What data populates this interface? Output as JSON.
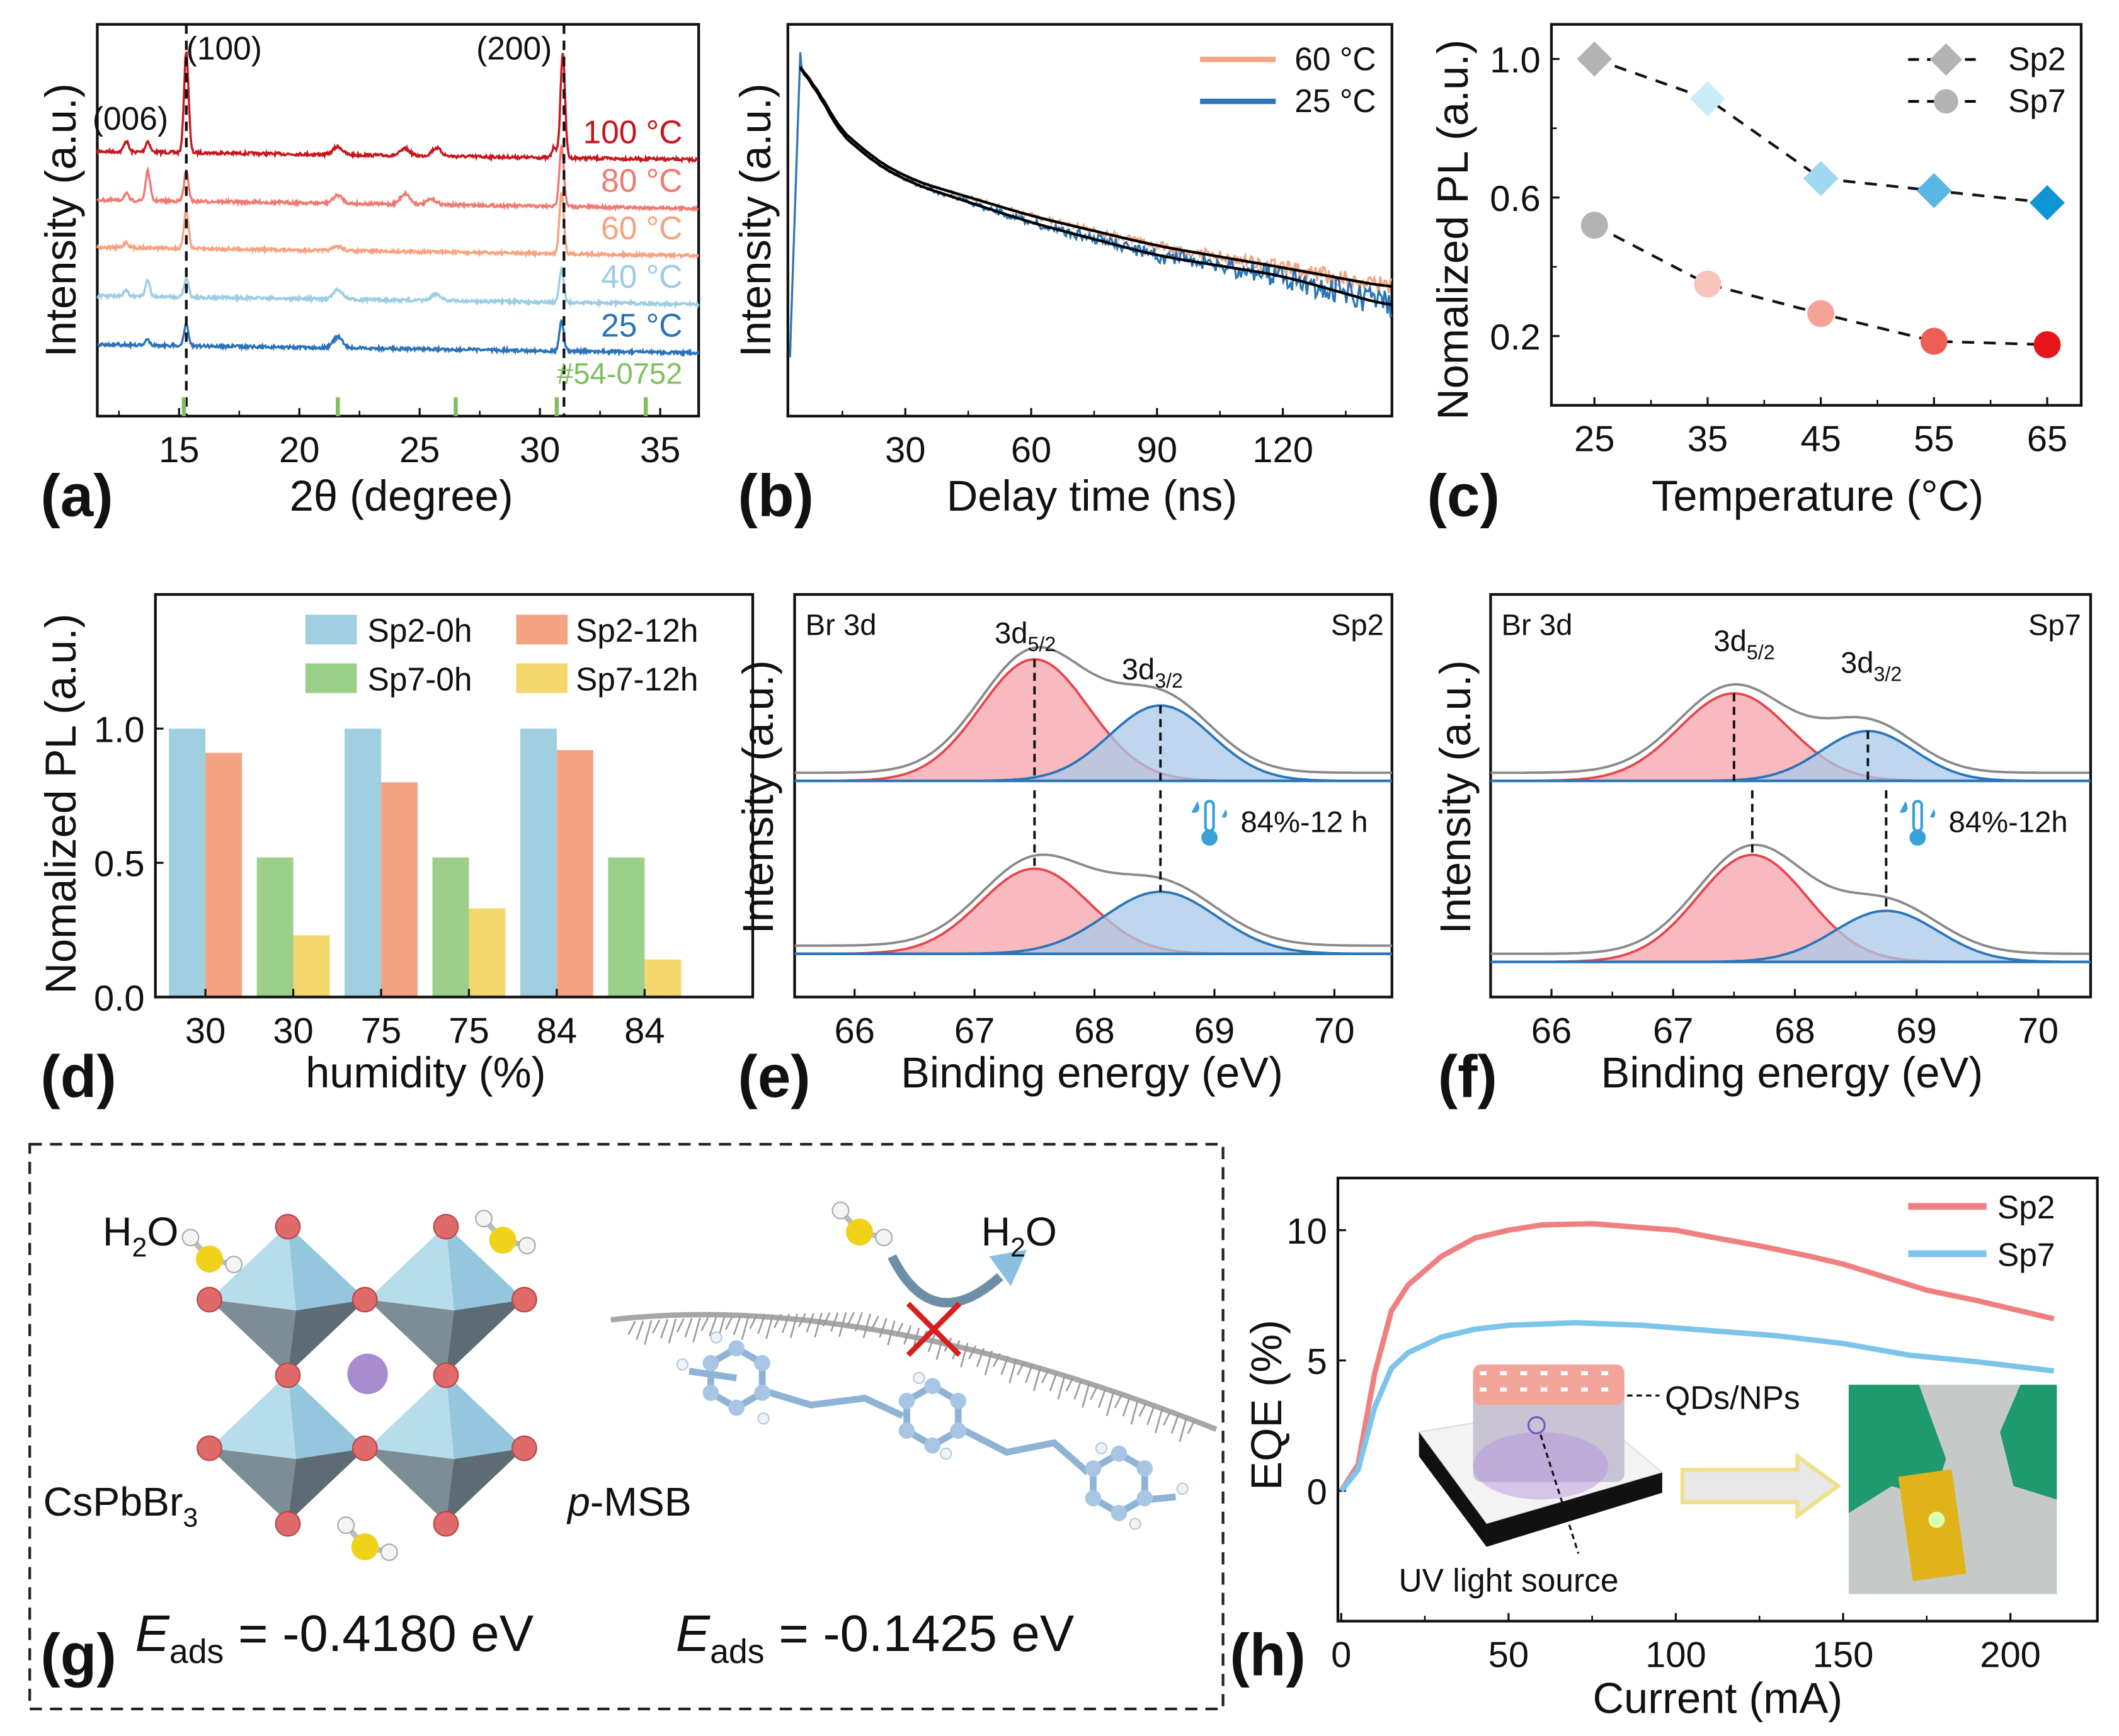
{
  "panel_labels": {
    "a": "(a)",
    "b": "(b)",
    "c": "(c)",
    "d": "(d)",
    "e": "(e)",
    "f": "(f)",
    "g": "(g)",
    "h": "(h)"
  },
  "chart_data": [
    {
      "panel": "(a)",
      "type": "line",
      "xlabel": "2θ (degree)",
      "ylabel": "Intensity (a.u.)",
      "xlim": [
        11.6,
        36.6
      ],
      "xticks": [
        15,
        20,
        25,
        30,
        35
      ],
      "yticks": [],
      "annotations": [
        {
          "text": "(006)",
          "x": 13.2
        },
        {
          "text": "(100)",
          "x": 15.3
        },
        {
          "text": "(200)",
          "x": 30.95
        }
      ],
      "dashed_lines_x": [
        15.3,
        31.0
      ],
      "reference": {
        "label": "#54-0752",
        "color": "#7fbf5f",
        "positions": [
          15.2,
          21.6,
          26.5,
          30.7,
          34.4
        ]
      },
      "series": [
        {
          "name": "100 °C",
          "color": "#c8161d",
          "peaks": [
            [
              12.8,
              8
            ],
            [
              13.7,
              8
            ],
            [
              15.3,
              75
            ],
            [
              21.6,
              6
            ],
            [
              24.4,
              5
            ],
            [
              25.7,
              6
            ],
            [
              30.6,
              8
            ],
            [
              30.95,
              78
            ]
          ]
        },
        {
          "name": "80 °C",
          "color": "#f07a72",
          "peaks": [
            [
              12.8,
              5
            ],
            [
              13.7,
              22
            ],
            [
              15.3,
              22
            ],
            [
              21.6,
              6
            ],
            [
              24.4,
              8
            ],
            [
              25.5,
              4
            ],
            [
              30.9,
              45
            ]
          ]
        },
        {
          "name": "60 °C",
          "color": "#f6a37f",
          "peaks": [
            [
              12.8,
              4
            ],
            [
              15.3,
              28
            ],
            [
              21.6,
              3
            ],
            [
              30.9,
              45
            ]
          ]
        },
        {
          "name": "40 °C",
          "color": "#9ccde3",
          "peaks": [
            [
              12.8,
              4
            ],
            [
              13.7,
              12
            ],
            [
              15.3,
              14
            ],
            [
              21.6,
              7
            ],
            [
              25.7,
              5
            ],
            [
              30.9,
              24
            ]
          ]
        },
        {
          "name": "25 °C",
          "color": "#2b72b8",
          "peaks": [
            [
              13.7,
              4
            ],
            [
              15.3,
              16
            ],
            [
              21.6,
              8
            ],
            [
              30.9,
              22
            ]
          ]
        }
      ]
    },
    {
      "panel": "(b)",
      "type": "line",
      "xlabel": "Delay time (ns)",
      "ylabel": "Intensity (a.u.)",
      "xlim": [
        2,
        146
      ],
      "xticks": [
        30,
        60,
        90,
        120
      ],
      "yscale": "log",
      "ylim": [
        0.001,
        1.5
      ],
      "fit_color": "#000000",
      "series": [
        {
          "name": "60 °C",
          "color": "#f4a582",
          "t": [
            2.5,
            5,
            10,
            20,
            30,
            60,
            90,
            120,
            146
          ],
          "intensity": [
            0.003,
            1.0,
            0.3,
            0.14,
            0.085,
            0.042,
            0.024,
            0.016,
            0.011
          ]
        },
        {
          "name": "25 °C",
          "color": "#2b75b8",
          "t": [
            2.5,
            5,
            10,
            20,
            30,
            60,
            90,
            120,
            146
          ],
          "intensity": [
            0.003,
            1.0,
            0.28,
            0.13,
            0.08,
            0.037,
            0.02,
            0.0137,
            0.0077
          ]
        }
      ]
    },
    {
      "panel": "(c)",
      "type": "scatter",
      "xlabel": "Temperature (°C)",
      "ylabel": "Nomalized PL (a.u.)",
      "xlim": [
        21.2,
        68
      ],
      "ylim": [
        0,
        1.1
      ],
      "xticks": [
        25,
        35,
        45,
        55,
        65
      ],
      "yticks": [
        0.2,
        0.6,
        1.0
      ],
      "x": [
        25,
        35,
        45,
        55,
        65
      ],
      "series": [
        {
          "name": "Sp2",
          "marker": "diamond",
          "values": [
            1.0,
            0.885,
            0.655,
            0.62,
            0.585
          ],
          "colors": [
            "#b3b3b3",
            "#c9ecf7",
            "#9fd8ef",
            "#5ab7e4",
            "#0e95d6"
          ]
        },
        {
          "name": "Sp7",
          "marker": "circle",
          "values": [
            0.52,
            0.35,
            0.265,
            0.185,
            0.175
          ],
          "colors": [
            "#b3b3b3",
            "#f9c4bc",
            "#f5a397",
            "#ec5f55",
            "#e8161b"
          ]
        }
      ],
      "legend_color": "#b3b3b3"
    },
    {
      "panel": "(d)",
      "type": "bar",
      "xlabel": "humidity (%)",
      "ylabel": "Nomalized PL (a.u.)",
      "ylim": [
        0,
        1.5
      ],
      "yticks": [
        0.0,
        0.5,
        1.0
      ],
      "categories": [
        "30",
        "30",
        "75",
        "75",
        "84",
        "84"
      ],
      "series": [
        {
          "name": "Sp2-0h",
          "color": "#9fcfe0",
          "values": [
            1.0,
            null,
            1.0,
            null,
            1.0,
            null
          ]
        },
        {
          "name": "Sp2-12h",
          "color": "#f4a382",
          "values": [
            0.91,
            null,
            0.8,
            null,
            0.92,
            null
          ]
        },
        {
          "name": "Sp7-0h",
          "color": "#9ccf8a",
          "values": [
            null,
            0.52,
            null,
            0.52,
            null,
            0.52
          ]
        },
        {
          "name": "Sp7-12h",
          "color": "#f3d76c",
          "values": [
            null,
            0.23,
            null,
            0.33,
            null,
            0.14
          ]
        }
      ]
    },
    {
      "panel": "(e)",
      "type": "area",
      "xlabel": "Binding energy (eV)",
      "ylabel": "Intensity (a.u.)",
      "xlim": [
        65.5,
        70.48
      ],
      "xticks": [
        66,
        67,
        68,
        69,
        70
      ],
      "corner_left": "Br 3d",
      "corner_right": "Sp2",
      "peak_labels": [
        {
          "main": "3d",
          "sub": "5/2"
        },
        {
          "main": "3d",
          "sub": "3/2"
        }
      ],
      "condition_label": "84%-12 h",
      "spectra": [
        {
          "components": [
            {
              "center": 67.5,
              "height": 1.0,
              "fwhm": 1.06
            },
            {
              "center": 68.55,
              "height": 0.62,
              "fwhm": 1.0
            }
          ]
        },
        {
          "components": [
            {
              "center": 67.5,
              "height": 0.7,
              "fwhm": 1.06
            },
            {
              "center": 68.55,
              "height": 0.51,
              "fwhm": 1.1
            }
          ]
        }
      ],
      "colors": {
        "d52": "#e5474d",
        "d32": "#2b75b8",
        "envelope": "#8a8a8a"
      }
    },
    {
      "panel": "(f)",
      "type": "area",
      "xlabel": "Binding energy (eV)",
      "ylabel": "Intensity (a.u.)",
      "xlim": [
        65.5,
        70.43
      ],
      "xticks": [
        66,
        67,
        68,
        69,
        70
      ],
      "corner_left": "Br 3d",
      "corner_right": "Sp7",
      "peak_labels": [
        {
          "main": "3d",
          "sub": "5/2"
        },
        {
          "main": "3d",
          "sub": "3/2"
        }
      ],
      "condition_label": "84%-12h",
      "spectra": [
        {
          "components": [
            {
              "center": 67.5,
              "height": 0.72,
              "fwhm": 1.06
            },
            {
              "center": 68.6,
              "height": 0.41,
              "fwhm": 0.9
            }
          ]
        },
        {
          "components": [
            {
              "center": 67.65,
              "height": 0.88,
              "fwhm": 1.06
            },
            {
              "center": 68.75,
              "height": 0.42,
              "fwhm": 1.0
            }
          ]
        }
      ],
      "colors": {
        "d52": "#e5474d",
        "d32": "#2b75b8",
        "envelope": "#8a8a8a"
      }
    },
    {
      "panel": "(h)",
      "type": "line",
      "xlabel": "Current (mA)",
      "ylabel": "EQE (%)",
      "xlim": [
        -1,
        226
      ],
      "ylim": [
        -5,
        12
      ],
      "xticks": [
        0,
        50,
        100,
        150,
        200
      ],
      "yticks": [
        0,
        5,
        10
      ],
      "series": [
        {
          "name": "Sp2",
          "color": "#f07f7f",
          "x": [
            0,
            5,
            10,
            15,
            20,
            30,
            40,
            50,
            60,
            75,
            90,
            100,
            110,
            125,
            140,
            150,
            160,
            175,
            190,
            213
          ],
          "y": [
            0,
            1,
            4.5,
            6.9,
            7.9,
            9.0,
            9.7,
            10.0,
            10.2,
            10.25,
            10.1,
            10.0,
            9.75,
            9.4,
            9.0,
            8.7,
            8.3,
            7.7,
            7.3,
            6.6
          ]
        },
        {
          "name": "Sp7",
          "color": "#7cc4ea",
          "x": [
            0,
            5,
            10,
            15,
            20,
            30,
            40,
            50,
            70,
            90,
            110,
            130,
            150,
            170,
            190,
            213
          ],
          "y": [
            0,
            0.8,
            3.2,
            4.7,
            5.3,
            5.9,
            6.2,
            6.35,
            6.45,
            6.35,
            6.15,
            5.95,
            5.65,
            5.2,
            4.95,
            4.6
          ]
        }
      ],
      "inset": {
        "top_label": "QDs/NPs",
        "bottom_label": "UV light source"
      }
    }
  ],
  "panel_g": {
    "water_left": {
      "main": "H",
      "sub": "2",
      "tail": "O"
    },
    "water_right": {
      "main": "H",
      "sub": "2",
      "tail": "O"
    },
    "perovskite": {
      "main": "CsPbBr",
      "sub": "3"
    },
    "ligand": {
      "italic": "p",
      "rest": "-MSB"
    },
    "eads_left": {
      "main": "E",
      "sub": "ads",
      "value": " = -0.4180 eV"
    },
    "eads_right": {
      "main": "E",
      "sub": "ads",
      "value": " = -0.1425 eV"
    }
  }
}
